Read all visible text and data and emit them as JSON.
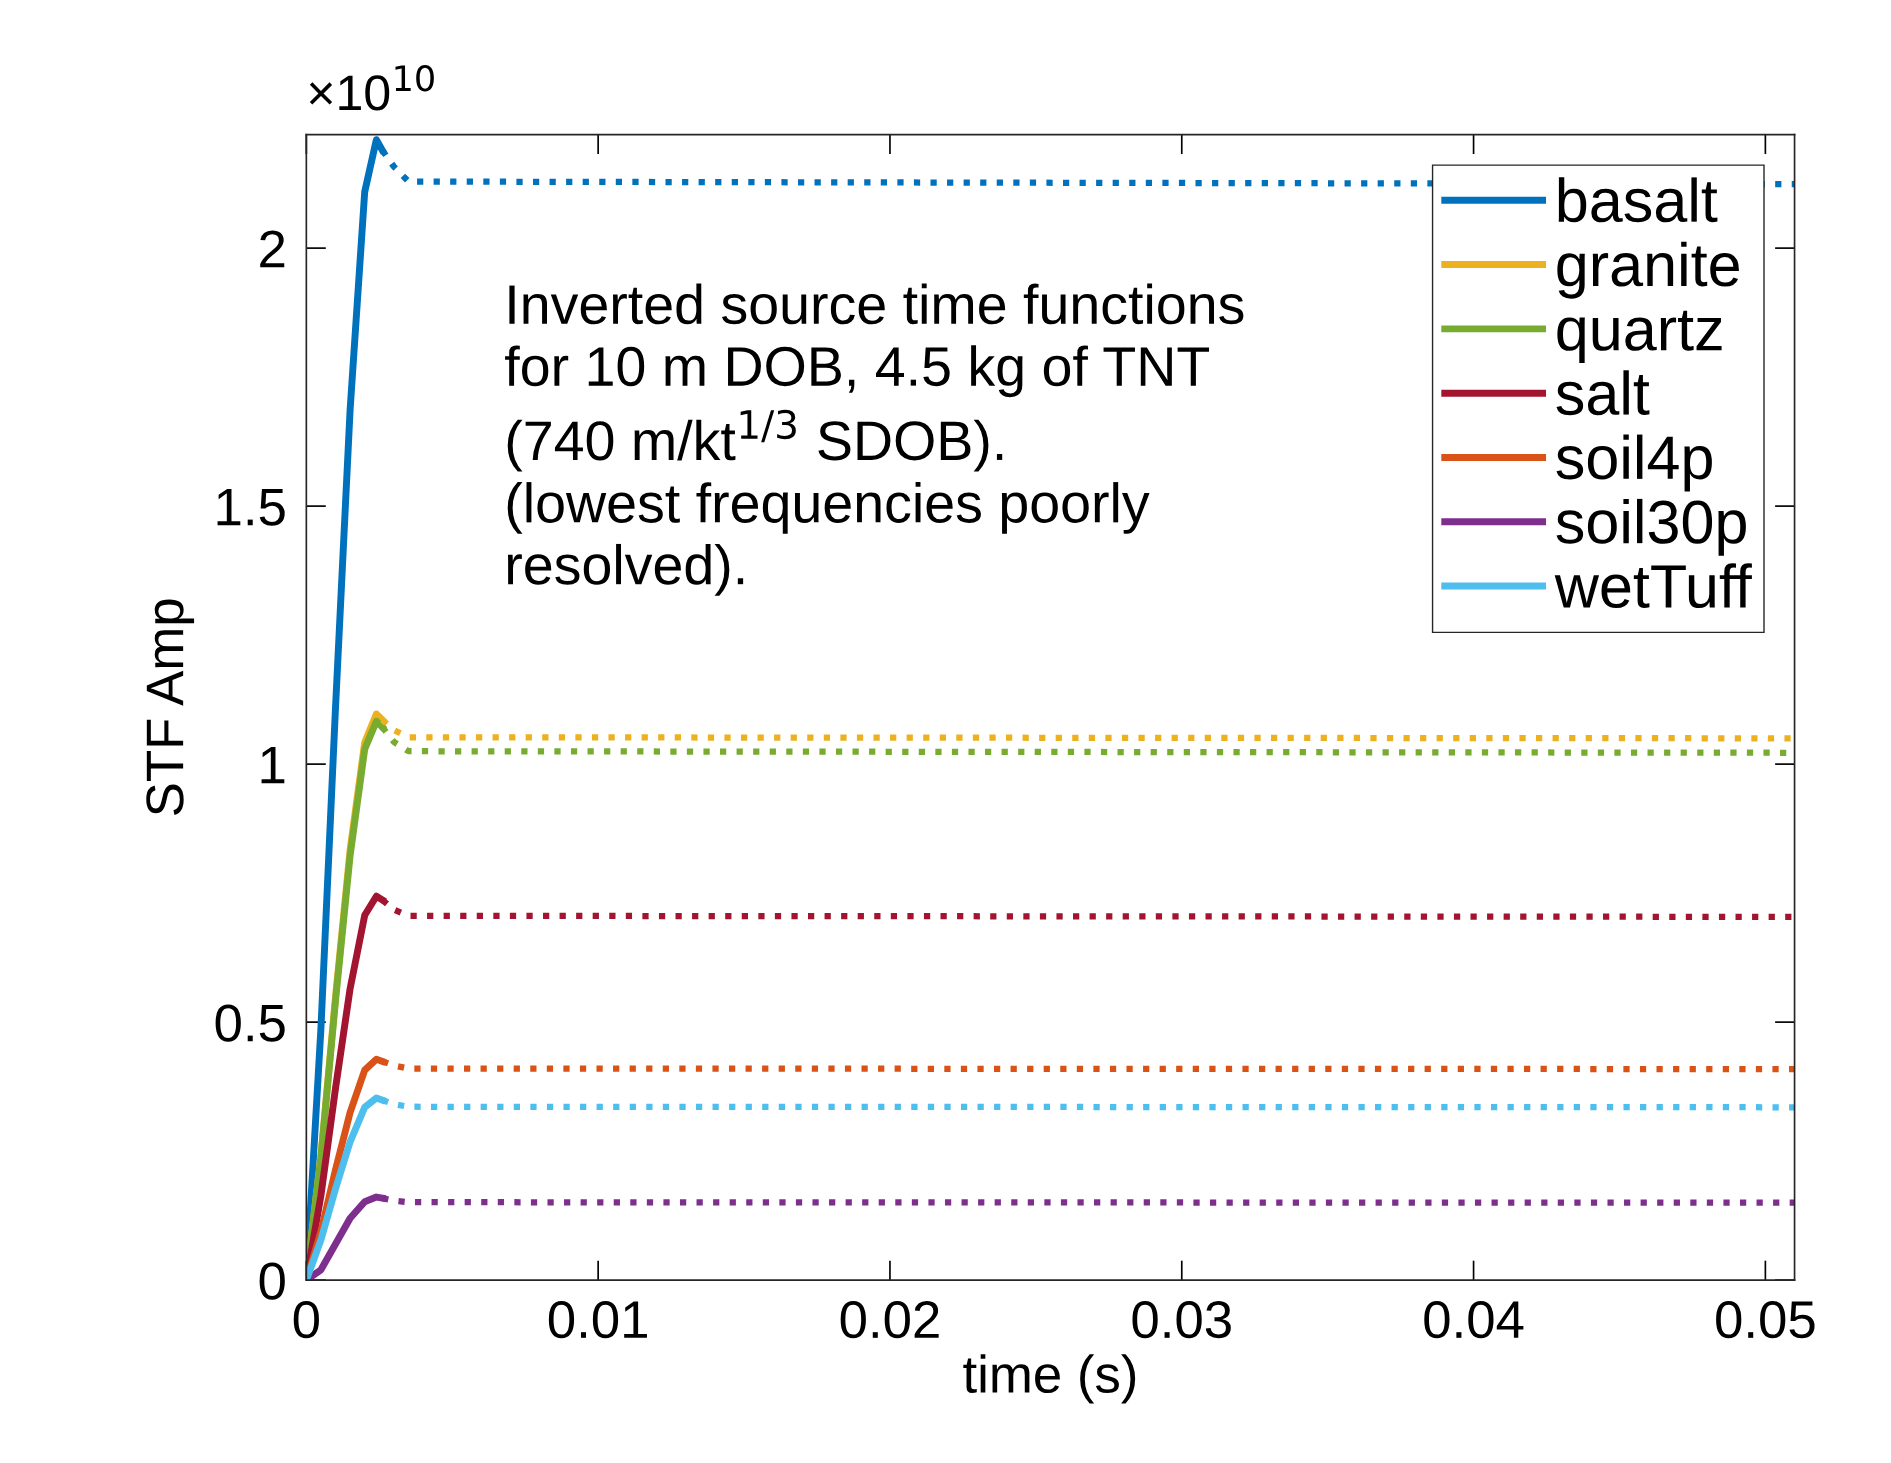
{
  "chart_data": {
    "type": "line",
    "xlabel": "time (s)",
    "ylabel": "STF Amp",
    "xlim": [
      0,
      0.051
    ],
    "xticks": [
      0,
      0.01,
      0.02,
      0.03,
      0.04,
      0.05
    ],
    "ylim": [
      0,
      2.22
    ],
    "yticks": [
      0,
      0.5,
      1,
      1.5,
      2
    ],
    "legend": "top right",
    "grid": false,
    "annotations": [
      "×10$^{10}$",
      "Inverted source time functions\nfor 10 m DOB, 4.5 kg of TNT\n(740 m/kt$^{1/3}$ SDOB).\n(lowest frequencies poorly\nresolved)."
    ],
    "series": [
      {
        "name": "basalt",
        "color": "#0072bd",
        "line_style": "solid",
        "x": [
          0,
          0.0005,
          0.001,
          0.0015,
          0.002,
          0.0024,
          0.0026
        ],
        "values": [
          0,
          0.488,
          1.11,
          1.687,
          2.109,
          2.21,
          2.19
        ]
      },
      {
        "name": "granite",
        "color": "#edb120",
        "line_style": "solid",
        "x": [
          0,
          0.0005,
          0.001,
          0.0015,
          0.002,
          0.0024,
          0.0026
        ],
        "values": [
          0,
          0.241,
          0.549,
          0.834,
          1.042,
          1.097,
          1.086
        ]
      },
      {
        "name": "quartz",
        "color": "#77ac30",
        "line_style": "solid",
        "x": [
          0,
          0.0005,
          0.001,
          0.0015,
          0.002,
          0.0024,
          0.0026
        ],
        "values": [
          0,
          0.238,
          0.542,
          0.823,
          1.029,
          1.083,
          1.072
        ]
      },
      {
        "name": "salt",
        "color": "#a2142f",
        "line_style": "solid",
        "x": [
          0,
          0.0005,
          0.001,
          0.0015,
          0.002,
          0.0024,
          0.0026
        ],
        "values": [
          0,
          0.164,
          0.372,
          0.565,
          0.707,
          0.744,
          0.737
        ]
      },
      {
        "name": "soil4p",
        "color": "#d95319",
        "line_style": "solid",
        "x": [
          0,
          0.0005,
          0.001,
          0.0015,
          0.002,
          0.0024,
          0.0026
        ],
        "values": [
          0,
          0.094,
          0.214,
          0.325,
          0.407,
          0.428,
          0.424
        ]
      },
      {
        "name": "soil30p",
        "color": "#7e2f8e",
        "line_style": "solid",
        "x": [
          0,
          0.0005,
          0.001,
          0.0015,
          0.002,
          0.0024,
          0.0026
        ],
        "values": [
          0,
          0.02,
          0.07,
          0.12,
          0.152,
          0.161,
          0.159
        ]
      },
      {
        "name": "wetTuff",
        "color": "#4dbeee",
        "line_style": "solid",
        "x": [
          0,
          0.0005,
          0.001,
          0.0015,
          0.002,
          0.0024,
          0.0026
        ],
        "values": [
          0,
          0.078,
          0.177,
          0.268,
          0.335,
          0.353,
          0.349
        ]
      },
      {
        "color": "#0072bd",
        "line_style": "dotted",
        "x": [
          0.0026,
          0.003,
          0.0035,
          0.051
        ],
        "values": [
          2.19,
          2.158,
          2.129,
          2.124
        ]
      },
      {
        "color": "#edb120",
        "line_style": "dotted",
        "x": [
          0.0026,
          0.003,
          0.0035,
          0.051
        ],
        "values": [
          1.086,
          1.066,
          1.052,
          1.05
        ]
      },
      {
        "color": "#77ac30",
        "line_style": "dotted",
        "x": [
          0.0026,
          0.003,
          0.0035,
          0.051
        ],
        "values": [
          1.072,
          1.043,
          1.025,
          1.022
        ]
      },
      {
        "color": "#a2142f",
        "line_style": "dotted",
        "x": [
          0.0026,
          0.003,
          0.0035,
          0.051
        ],
        "values": [
          0.737,
          0.718,
          0.706,
          0.704
        ]
      },
      {
        "color": "#d95319",
        "line_style": "dotted",
        "x": [
          0.0026,
          0.003,
          0.0035,
          0.051
        ],
        "values": [
          0.424,
          0.416,
          0.41,
          0.409
        ]
      },
      {
        "color": "#7e2f8e",
        "line_style": "dotted",
        "x": [
          0.0026,
          0.003,
          0.0035,
          0.051
        ],
        "values": [
          0.159,
          0.154,
          0.151,
          0.15
        ]
      },
      {
        "color": "#4dbeee",
        "line_style": "dotted",
        "x": [
          0.0026,
          0.003,
          0.0035,
          0.051
        ],
        "values": [
          0.349,
          0.341,
          0.336,
          0.335
        ]
      }
    ]
  }
}
